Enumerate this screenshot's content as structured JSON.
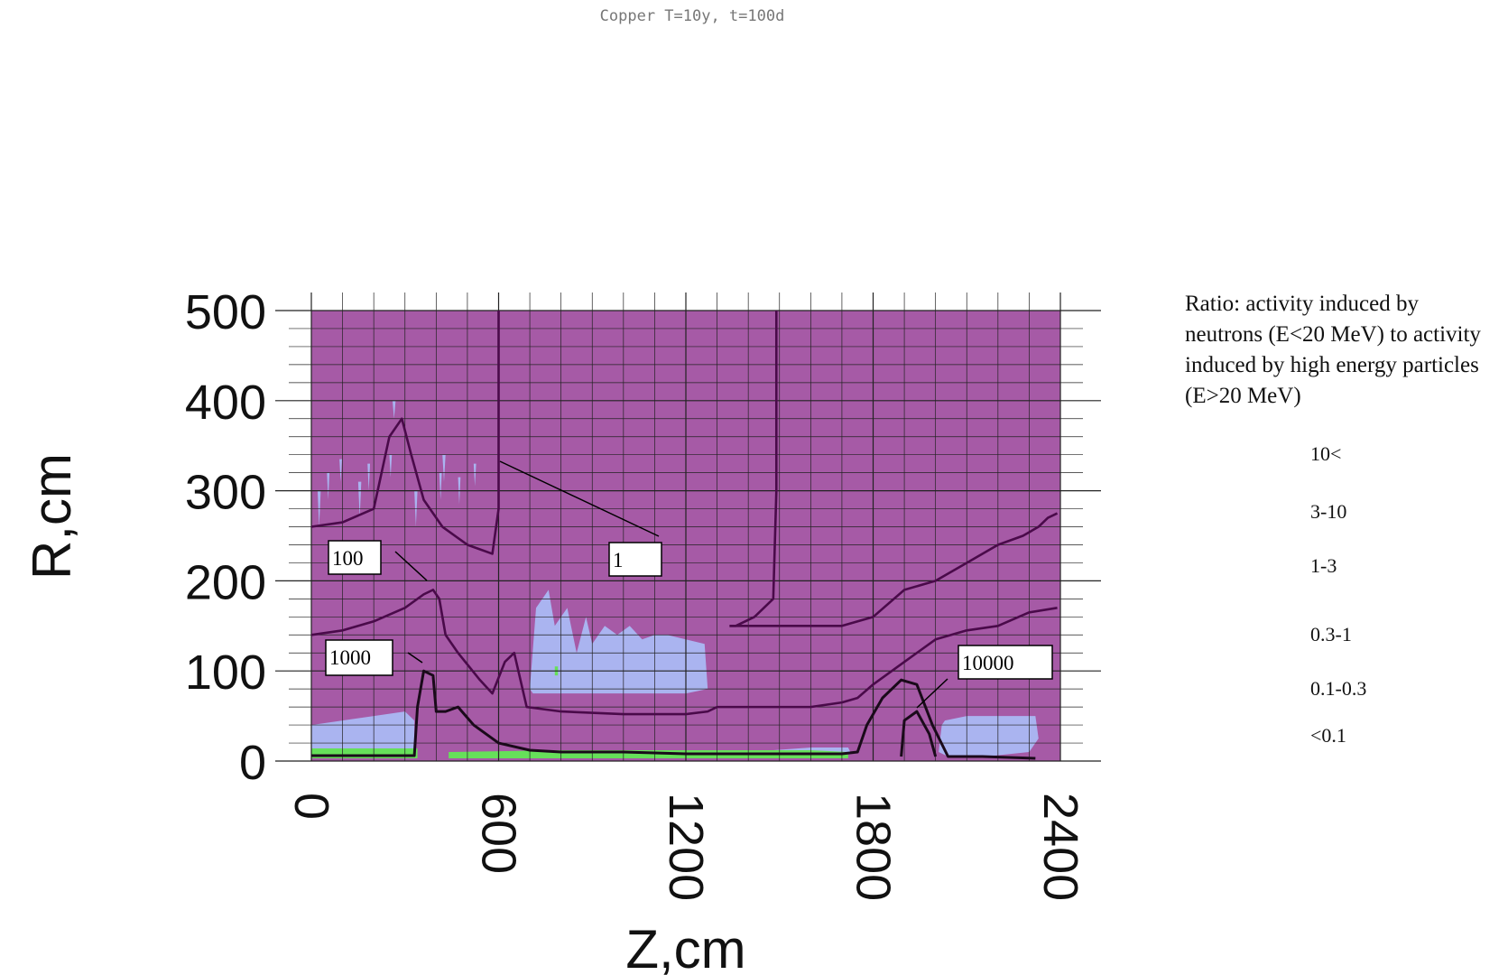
{
  "chart_data": {
    "type": "heatmap",
    "title": "Copper T=10y, t=100d",
    "xlabel": "Z,cm",
    "ylabel": "R,cm",
    "xlim": [
      0,
      2400
    ],
    "ylim": [
      0,
      500
    ],
    "x_ticks": [
      0,
      600,
      1200,
      1800,
      2400
    ],
    "y_ticks": [
      0,
      100,
      200,
      300,
      400,
      500
    ],
    "grid": true,
    "legend": {
      "title": "Ratio: activity induced by neutrons (E<20 MeV) to activity induced by high energy particles (E>20 MeV)",
      "position": "right",
      "entries": [
        {
          "label": "10<",
          "color": ""
        },
        {
          "label": "3-10",
          "color": ""
        },
        {
          "label": "1-3",
          "color": ""
        },
        {
          "label": "0.3-1",
          "color": ""
        },
        {
          "label": "0.1-0.3",
          "color": ""
        },
        {
          "label": "<0.1",
          "color": ""
        }
      ]
    },
    "colors": {
      "background": "#a65aa6",
      "light_region": "#aab4f0",
      "green_region": "#66e05a",
      "contour_line": "#4a0a4a",
      "contour_line_dark": "#1a0a1a"
    },
    "contours": [
      {
        "label": "1",
        "points": [
          [
            600,
            340
          ],
          [
            600,
            500
          ]
        ]
      },
      {
        "label": "1",
        "points": [
          [
            1340,
            150
          ],
          [
            1360,
            150
          ],
          [
            1420,
            160
          ],
          [
            1480,
            180
          ],
          [
            1490,
            300
          ],
          [
            1490,
            500
          ]
        ]
      },
      {
        "label": "100",
        "points": [
          [
            0,
            260
          ],
          [
            100,
            265
          ],
          [
            200,
            280
          ],
          [
            250,
            360
          ],
          [
            290,
            380
          ],
          [
            320,
            340
          ],
          [
            360,
            290
          ],
          [
            420,
            260
          ],
          [
            500,
            240
          ],
          [
            580,
            230
          ],
          [
            600,
            280
          ],
          [
            600,
            340
          ]
        ]
      },
      {
        "label": "100",
        "points": [
          [
            1340,
            150
          ],
          [
            1500,
            150
          ],
          [
            1700,
            150
          ],
          [
            1800,
            160
          ],
          [
            1900,
            190
          ],
          [
            2000,
            200
          ],
          [
            2100,
            220
          ],
          [
            2200,
            240
          ],
          [
            2280,
            250
          ],
          [
            2330,
            260
          ],
          [
            2360,
            270
          ],
          [
            2390,
            275
          ]
        ]
      },
      {
        "label": "1000",
        "points": [
          [
            0,
            140
          ],
          [
            100,
            145
          ],
          [
            200,
            155
          ],
          [
            300,
            170
          ],
          [
            360,
            185
          ],
          [
            390,
            190
          ],
          [
            410,
            180
          ],
          [
            430,
            140
          ],
          [
            470,
            120
          ],
          [
            540,
            90
          ],
          [
            580,
            75
          ],
          [
            620,
            110
          ],
          [
            650,
            120
          ],
          [
            690,
            60
          ],
          [
            800,
            55
          ],
          [
            1000,
            52
          ],
          [
            1200,
            52
          ],
          [
            1270,
            55
          ],
          [
            1300,
            60
          ],
          [
            1400,
            60
          ],
          [
            1600,
            60
          ],
          [
            1700,
            65
          ],
          [
            1750,
            70
          ],
          [
            1800,
            85
          ],
          [
            1900,
            110
          ],
          [
            2000,
            135
          ],
          [
            2100,
            145
          ],
          [
            2200,
            150
          ],
          [
            2300,
            165
          ],
          [
            2390,
            170
          ]
        ]
      },
      {
        "label": "10000",
        "points": [
          [
            0,
            6
          ],
          [
            200,
            6
          ],
          [
            330,
            6
          ],
          [
            340,
            60
          ],
          [
            360,
            100
          ],
          [
            390,
            95
          ],
          [
            400,
            55
          ],
          [
            430,
            55
          ],
          [
            470,
            60
          ],
          [
            520,
            40
          ],
          [
            600,
            20
          ],
          [
            700,
            12
          ],
          [
            800,
            10
          ],
          [
            1000,
            10
          ],
          [
            1200,
            8
          ],
          [
            1400,
            8
          ],
          [
            1600,
            8
          ],
          [
            1700,
            8
          ],
          [
            1750,
            10
          ],
          [
            1780,
            40
          ],
          [
            1830,
            70
          ],
          [
            1890,
            90
          ],
          [
            1940,
            85
          ],
          [
            1990,
            40
          ],
          [
            2040,
            5
          ],
          [
            2150,
            5
          ],
          [
            2320,
            3
          ]
        ]
      },
      {
        "label": "10000",
        "points": [
          [
            1890,
            5
          ],
          [
            1900,
            45
          ],
          [
            1940,
            55
          ],
          [
            1980,
            30
          ],
          [
            2000,
            5
          ]
        ]
      }
    ],
    "annotations": [
      "1",
      "100",
      "1000",
      "10000"
    ]
  }
}
